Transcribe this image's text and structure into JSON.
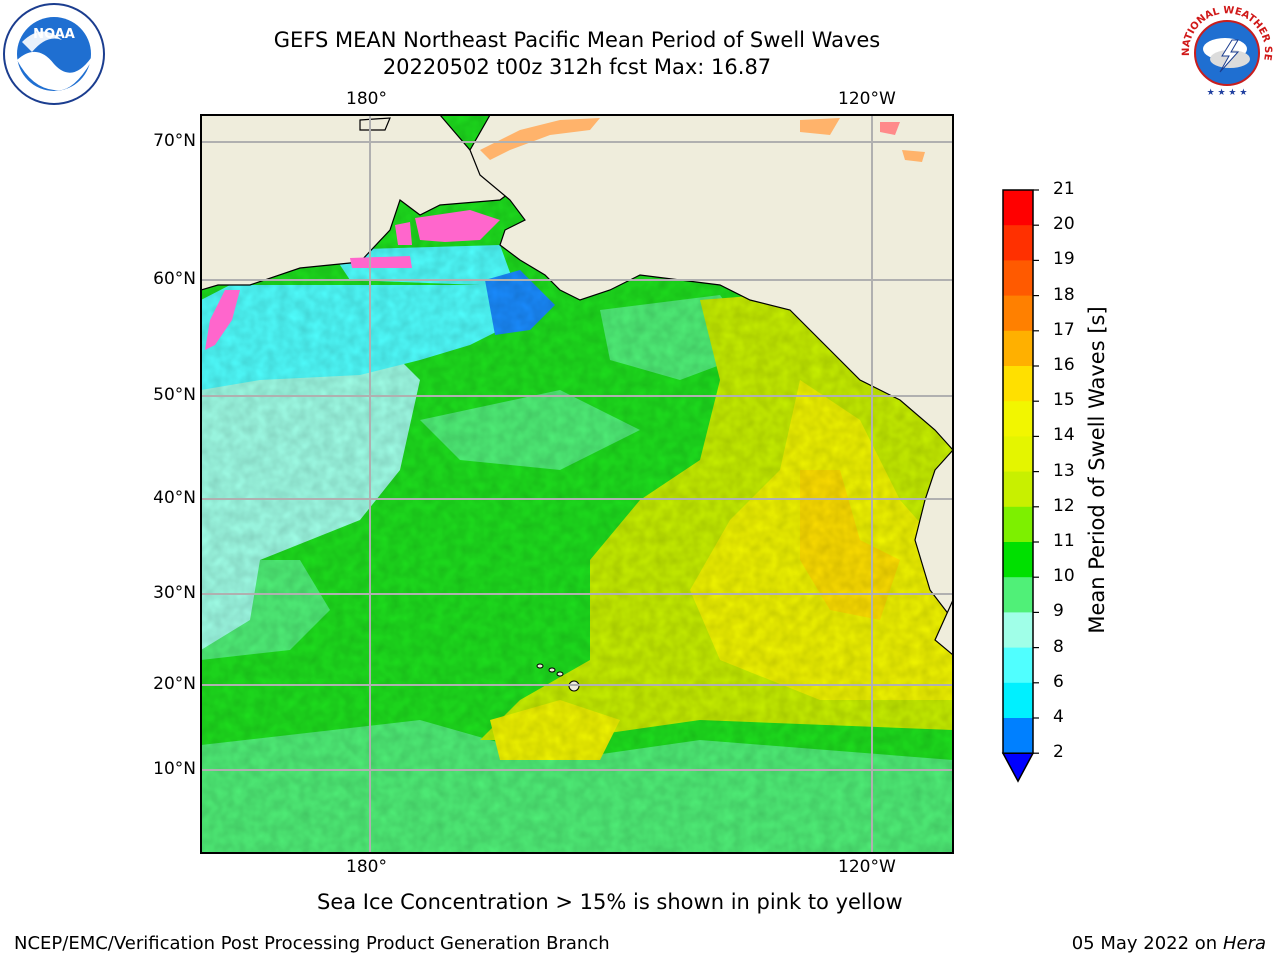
{
  "header": {
    "title_line1": "GEFS MEAN Northeast Pacific Mean Period of Swell Waves",
    "title_line2": "20220502 t00z 312h fcst   Max: 16.87"
  },
  "map": {
    "lon_labels": [
      "180°",
      "120°W"
    ],
    "lat_labels": [
      "70°N",
      "60°N",
      "50°N",
      "40°N",
      "30°N",
      "20°N",
      "10°N"
    ],
    "colors": {
      "land": "#efeddc",
      "grid": "#b0b0b0",
      "coast": "#000000"
    }
  },
  "colorbar": {
    "title": "Mean Period of Swell Waves [s]",
    "ticks": [
      "21",
      "20",
      "19",
      "18",
      "17",
      "16",
      "15",
      "14",
      "13",
      "12",
      "11",
      "10",
      "9",
      "8",
      "6",
      "4",
      "2"
    ],
    "colors": [
      "#ff0000",
      "#ff3000",
      "#ff5a00",
      "#ff8000",
      "#ffb000",
      "#ffe000",
      "#f2f600",
      "#e4f500",
      "#c8f000",
      "#7df000",
      "#00e000",
      "#50f078",
      "#a0ffe8",
      "#50ffff",
      "#00f0ff",
      "#0080ff",
      "#0000ff"
    ]
  },
  "footnote": "Sea Ice Concentration > 15% is shown in pink to yellow",
  "footer": {
    "credit": "NCEP/EMC/Verification Post Processing Product Generation Branch",
    "date_prefix": "05 May 2022 on",
    "machine": "Hera"
  },
  "logos": {
    "left": {
      "icon": "noaa-logo",
      "text": "NOAA"
    },
    "right": {
      "icon": "nws-logo",
      "text": "NATIONAL WEATHER SERVICE"
    }
  }
}
